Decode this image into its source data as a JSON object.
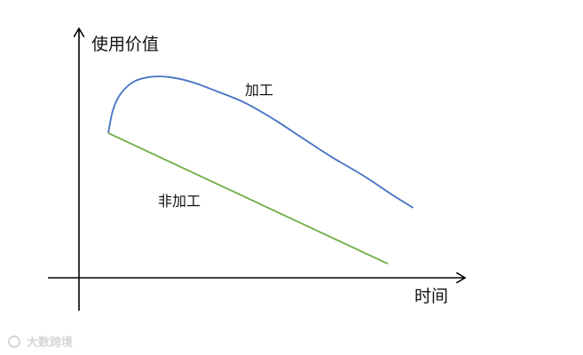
{
  "chart_data": {
    "type": "line",
    "title": "",
    "ylabel": "使用价值",
    "xlabel": "时间",
    "grid": false,
    "xlim": [
      0,
      10
    ],
    "ylim": [
      0,
      10
    ],
    "series": [
      {
        "name": "加工",
        "color": "#4472c4",
        "x": [
          0,
          0.15,
          0.4,
          0.8,
          1.3,
          1.9,
          2.6,
          3.4,
          4.3,
          5.2,
          6.1,
          7.0,
          8.0,
          9.0,
          9.6
        ],
        "y": [
          6.2,
          7.2,
          7.9,
          8.4,
          8.6,
          8.6,
          8.4,
          8.0,
          7.5,
          6.8,
          6.0,
          5.2,
          4.4,
          3.5,
          3.0
        ]
      },
      {
        "name": "非加工",
        "color": "#70ad47",
        "x": [
          0,
          8.8
        ],
        "y": [
          6.2,
          0.6
        ]
      }
    ]
  },
  "watermark": "大数跨境"
}
